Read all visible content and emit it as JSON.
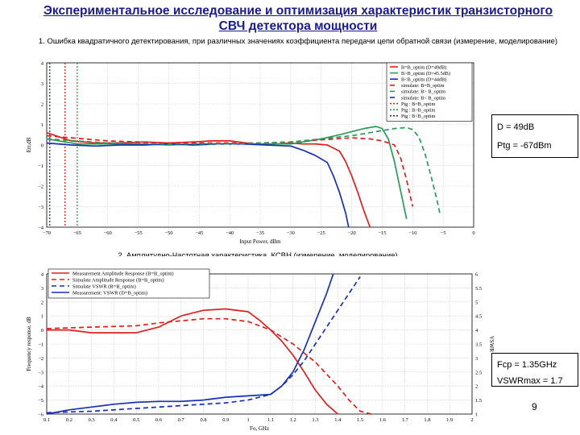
{
  "page": {
    "title": "Экспериментальное исследование и оптимизация характеристик транзисторного СВЧ детектора мощности",
    "page_number": "9"
  },
  "box1": {
    "line1": "D = 49dB",
    "line2": "Ptg = -67dBm"
  },
  "box2": {
    "line1": "Fcp = 1.35GHz",
    "line2": "VSWRmax = 1.7"
  },
  "colors": {
    "red": "#dd1f1f",
    "green": "#2a9a5a",
    "blue": "#1a2fb4",
    "title": "#1a1a8c"
  },
  "chart_data": [
    {
      "type": "line",
      "caption": "1. Ошибка квадратичного детектирования, при различных значениях коэффициента передачи цепи обратной связи (измерение, моделирование)",
      "xlabel": "Input Power, dBm",
      "ylabel": "Err,dB",
      "xlim": [
        -70,
        0
      ],
      "ylim": [
        -4,
        4
      ],
      "xticks": [
        -70,
        -65,
        -60,
        -55,
        -50,
        -45,
        -40,
        -35,
        -30,
        -25,
        -20,
        -15,
        -10,
        -5,
        0
      ],
      "yticks": [
        4,
        3,
        2,
        1,
        0,
        -1,
        -2,
        -3,
        -4
      ],
      "xtick_labels": [
        "−70",
        "−65",
        "−60",
        "−55",
        "−50",
        "−45",
        "−40",
        "−35",
        "−30",
        "−25",
        "−20",
        "−15",
        "−10",
        "−5",
        "0"
      ],
      "ytick_labels": [
        "4",
        "3",
        "2",
        "1",
        "0",
        "−1",
        "−2",
        "−3",
        "−4"
      ],
      "vlines": [
        {
          "x": -69.5,
          "name": "Ptg : B<B_optim",
          "color": "#1a2fb4"
        },
        {
          "x": -67,
          "name": "Ptg : B=B_optim",
          "color": "#dd1f1f"
        },
        {
          "x": -65,
          "name": "Ptg : B>B_optim",
          "color": "#2a9a5a"
        }
      ],
      "series": [
        {
          "name": "B=B_optim (D=49dB)",
          "color": "#dd1f1f",
          "style": "solid",
          "x": [
            -70,
            -66,
            -62,
            -58,
            -54,
            -50,
            -46,
            -43,
            -40,
            -36,
            -32,
            -30,
            -28,
            -26,
            -24,
            -22,
            -21,
            -20,
            -19,
            -18,
            -17
          ],
          "y": [
            0.6,
            0.2,
            0.1,
            0.1,
            0.15,
            0.1,
            0.15,
            0.2,
            0.2,
            0.05,
            0.05,
            0.1,
            0.05,
            0.05,
            0.0,
            -0.3,
            -0.8,
            -1.5,
            -2.3,
            -3.2,
            -4.0
          ]
        },
        {
          "name": "B>B_optim (D=45.5dB)",
          "color": "#2a9a5a",
          "style": "solid",
          "x": [
            -70,
            -65,
            -60,
            -55,
            -50,
            -45,
            -40,
            -35,
            -30,
            -25,
            -22,
            -20,
            -18,
            -16,
            -15,
            -14,
            -13,
            -12,
            -11
          ],
          "y": [
            0.3,
            0.05,
            0.05,
            0.05,
            0.0,
            0.05,
            0.05,
            0.05,
            0.05,
            0.3,
            0.5,
            0.65,
            0.8,
            0.9,
            0.8,
            0.3,
            -0.8,
            -2.2,
            -3.6
          ]
        },
        {
          "name": "B<B_optim (D=44dB)",
          "color": "#1a2fb4",
          "style": "solid",
          "x": [
            -70,
            -66,
            -62,
            -58,
            -54,
            -50,
            -46,
            -42,
            -38,
            -34,
            -30,
            -28,
            -26,
            -24,
            -23,
            -22,
            -21,
            -20.5
          ],
          "y": [
            0.1,
            0.0,
            -0.05,
            0.0,
            0.0,
            0.05,
            0.0,
            0.05,
            0.05,
            0.0,
            -0.05,
            -0.25,
            -0.5,
            -0.85,
            -1.5,
            -2.3,
            -3.3,
            -4.0
          ]
        },
        {
          "name": "simulate: B=B_optim",
          "color": "#dd1f1f",
          "style": "dashed",
          "x": [
            -70,
            -60,
            -50,
            -40,
            -35,
            -30,
            -25,
            -20,
            -17,
            -15,
            -13,
            -12,
            -11,
            -10
          ],
          "y": [
            0.45,
            0.2,
            0.1,
            0.1,
            0.1,
            0.15,
            0.25,
            0.35,
            0.3,
            0.2,
            0.0,
            -0.6,
            -1.7,
            -3.0
          ]
        },
        {
          "name": "simulate: B>B_optim",
          "color": "#2a9a5a",
          "style": "dashed",
          "x": [
            -70,
            -60,
            -50,
            -40,
            -35,
            -30,
            -25,
            -20,
            -17,
            -15,
            -13,
            -11,
            -10,
            -9,
            -8,
            -7,
            -6,
            -5.5
          ],
          "y": [
            0.3,
            0.1,
            0.05,
            0.05,
            0.1,
            0.15,
            0.3,
            0.45,
            0.6,
            0.7,
            0.8,
            0.85,
            0.75,
            0.4,
            -0.4,
            -1.5,
            -2.7,
            -3.4
          ]
        },
        {
          "name": "simulate: B<B_optim",
          "color": "#1a2fb4",
          "style": "dashed",
          "show_curve": false,
          "x": [],
          "y": []
        }
      ],
      "legend": [
        {
          "label": "B=B_optim (D=49dB)",
          "color": "#dd1f1f",
          "style": "solid"
        },
        {
          "label": "B>B_optim (D=45.5dB)",
          "color": "#2a9a5a",
          "style": "solid"
        },
        {
          "label": "B<B_optim (D=44dB)",
          "color": "#1a2fb4",
          "style": "solid"
        },
        {
          "label": "simulate: B=B_optim",
          "color": "#dd1f1f",
          "style": "dashed"
        },
        {
          "label": "simulate: B> B_optim",
          "color": "#2a9a5a",
          "style": "dashed"
        },
        {
          "label": "simulate: B< B_optim",
          "color": "#1a2fb4",
          "style": "dashed"
        },
        {
          "label": "Ptg : B=B_optim",
          "color": "#dd1f1f",
          "style": "dotted"
        },
        {
          "label": "Ptg : B>B_optim",
          "color": "#2a9a5a",
          "style": "dotted"
        },
        {
          "label": "Ptg : B<B_optim",
          "color": "#1a2fb4",
          "style": "dotted"
        }
      ],
      "legend_position": "top-right",
      "grid": true
    },
    {
      "type": "line",
      "caption": "2. Амплитудно-Частотная характеристика, КСВН (измерение, моделирование)",
      "xlabel": "Fo, GHz",
      "ylabel": "Frequency response, dB",
      "ylabel_right": "VSWR",
      "xlim": [
        0.1,
        2.0
      ],
      "ylim": [
        -6,
        4
      ],
      "ylim_right": [
        1,
        6
      ],
      "xticks": [
        0.1,
        0.2,
        0.3,
        0.4,
        0.5,
        0.6,
        0.7,
        0.8,
        0.9,
        1.0,
        1.1,
        1.2,
        1.3,
        1.4,
        1.5,
        1.6,
        1.7,
        1.8,
        1.9,
        2.0
      ],
      "yticks": [
        4,
        3,
        2,
        1,
        0,
        -1,
        -2,
        -3,
        -4,
        -5,
        -6
      ],
      "yticks_right": [
        6,
        5.5,
        5,
        4.5,
        4,
        3.5,
        3,
        2.5,
        2,
        1.5,
        1
      ],
      "xtick_labels": [
        "0.1",
        "0.2",
        "0.3",
        "0.4",
        "0.5",
        "0.6",
        "0.7",
        "0.8",
        "0.9",
        "1",
        "1.1",
        "1.2",
        "1.3",
        "1.4",
        "1.5",
        "1.6",
        "1.7",
        "1.8",
        "1.9",
        "2"
      ],
      "ytick_labels": [
        "4",
        "3",
        "2",
        "1",
        "0",
        "−1",
        "−2",
        "−3",
        "−4",
        "−5",
        "−6"
      ],
      "ytick_labels_right": [
        "6",
        "5.5",
        "5",
        "4.5",
        "4",
        "3.5",
        "3",
        "2.5",
        "2",
        "1.5",
        "1"
      ],
      "series": [
        {
          "name": "Measurement: Amplitude Response (B=B_optim)",
          "color": "#dd1f1f",
          "style": "solid",
          "axis": "left",
          "x": [
            0.1,
            0.2,
            0.3,
            0.4,
            0.5,
            0.6,
            0.7,
            0.8,
            0.9,
            1.0,
            1.05,
            1.1,
            1.15,
            1.2,
            1.25,
            1.3,
            1.35,
            1.4
          ],
          "y": [
            0.0,
            0.0,
            -0.2,
            -0.2,
            -0.2,
            0.2,
            1.0,
            1.4,
            1.5,
            1.3,
            0.7,
            0.0,
            -0.8,
            -1.8,
            -3.0,
            -4.3,
            -5.3,
            -6.0
          ]
        },
        {
          "name": "Simulate Amplitude Response (B=B_optim)",
          "color": "#dd1f1f",
          "style": "dashed",
          "axis": "left",
          "x": [
            0.1,
            0.3,
            0.5,
            0.6,
            0.7,
            0.8,
            0.9,
            1.0,
            1.1,
            1.2,
            1.3,
            1.4,
            1.45,
            1.5,
            1.55
          ],
          "y": [
            0.1,
            0.2,
            0.3,
            0.5,
            0.65,
            0.8,
            0.8,
            0.6,
            0.0,
            -1.0,
            -2.3,
            -4.0,
            -5.0,
            -5.8,
            -6.0
          ]
        },
        {
          "name": "Simulate VSWR (B=B_optim)",
          "color": "#1a2fb4",
          "style": "dashed",
          "axis": "right",
          "x": [
            0.1,
            0.3,
            0.5,
            0.7,
            0.9,
            1.0,
            1.1,
            1.15,
            1.2,
            1.25,
            1.3,
            1.35,
            1.4,
            1.45,
            1.5
          ],
          "y": [
            1.05,
            1.1,
            1.2,
            1.3,
            1.4,
            1.5,
            1.7,
            2.0,
            2.4,
            2.9,
            3.5,
            4.1,
            4.7,
            5.3,
            5.9
          ]
        },
        {
          "name": "Measurement: VSWR (D=B_optim)",
          "color": "#1a2fb4",
          "style": "solid",
          "axis": "right",
          "x": [
            0.1,
            0.2,
            0.3,
            0.4,
            0.5,
            0.6,
            0.7,
            0.8,
            0.9,
            1.0,
            1.1,
            1.15,
            1.2,
            1.25,
            1.3,
            1.35,
            1.38
          ],
          "y": [
            1.0,
            1.15,
            1.25,
            1.35,
            1.42,
            1.45,
            1.45,
            1.5,
            1.6,
            1.65,
            1.7,
            2.0,
            2.5,
            3.3,
            4.3,
            5.3,
            6.0
          ]
        }
      ],
      "legend": [
        {
          "label": "Measurement Amplitude Response (B=B_optim)",
          "color": "#dd1f1f",
          "style": "solid"
        },
        {
          "label": "Simulate Amplitude Response (B=B_optim)",
          "color": "#dd1f1f",
          "style": "dashed"
        },
        {
          "label": "Simulate VSWR (B=B_optim)",
          "color": "#1a2fb4",
          "style": "dashed"
        },
        {
          "label": "Measurement: VSWR (D=B_optim)",
          "color": "#1a2fb4",
          "style": "solid"
        }
      ],
      "legend_position": "top-left",
      "grid": true
    }
  ]
}
